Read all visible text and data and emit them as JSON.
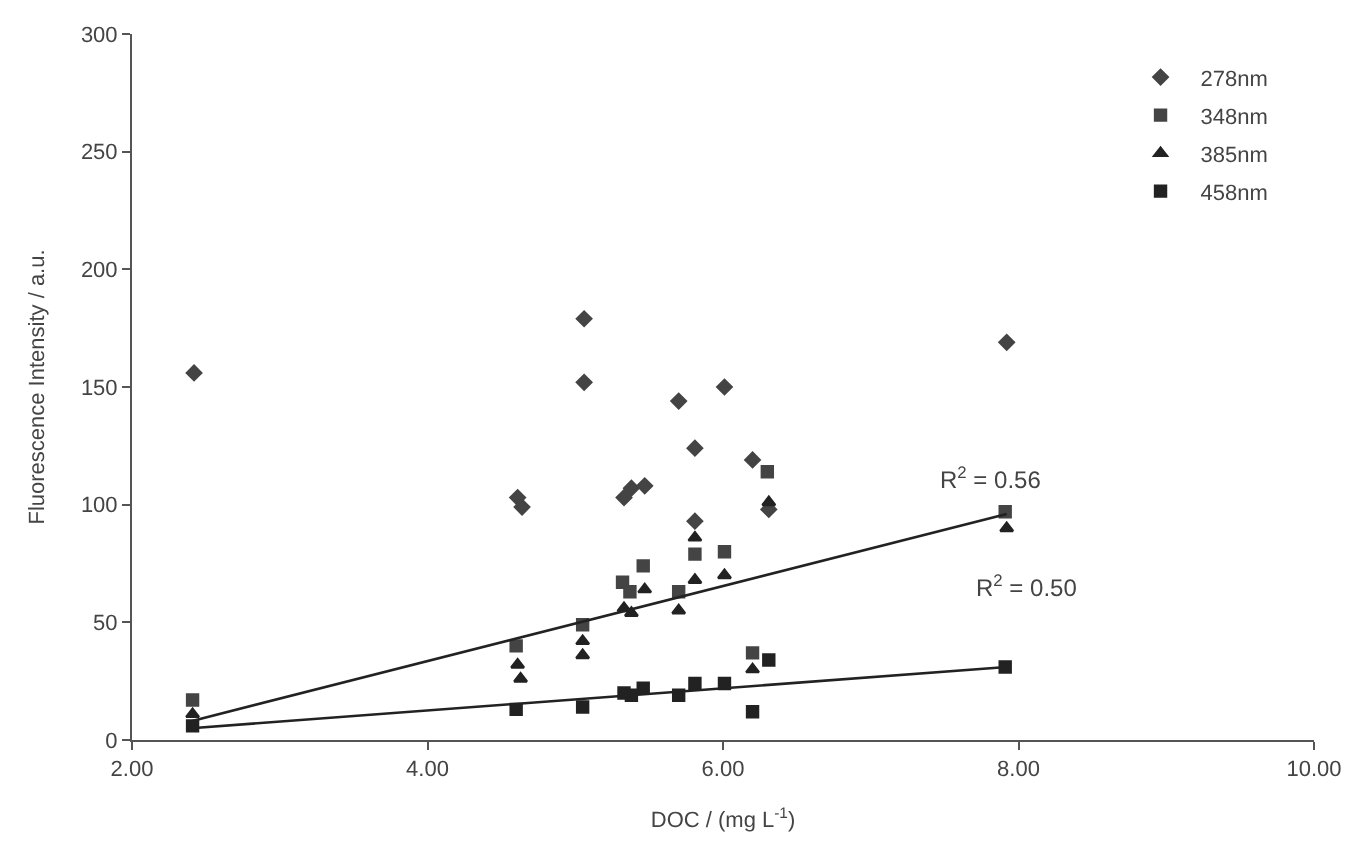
{
  "chart_data": {
    "type": "scatter",
    "xlabel": "DOC / (mg L$^{-1}$)",
    "ylabel": "Fluorescence Intensity / a.u.",
    "xlim": [
      2,
      10
    ],
    "ylim": [
      0,
      300
    ],
    "xticks": [
      {
        "value": 2,
        "label": "2.00"
      },
      {
        "value": 4,
        "label": "4.00"
      },
      {
        "value": 6,
        "label": "6.00"
      },
      {
        "value": 8,
        "label": "8.00"
      },
      {
        "value": 10,
        "label": "10.00"
      }
    ],
    "yticks": [
      0,
      50,
      100,
      150,
      200,
      250,
      300
    ],
    "legend": "top right",
    "series": [
      {
        "name": "278nm",
        "color": "#444444",
        "marker": "diamond",
        "x": [
          2.42,
          4.61,
          4.64,
          5.06,
          5.06,
          5.33,
          5.38,
          5.47,
          5.7,
          5.81,
          5.81,
          6.01,
          6.2,
          6.31,
          7.92
        ],
        "values": [
          156,
          103,
          99,
          179,
          152,
          103,
          107,
          108,
          144,
          124,
          93,
          150,
          119,
          98,
          169
        ]
      },
      {
        "name": "348nm",
        "color": "#444444",
        "marker": "square",
        "x": [
          2.41,
          4.6,
          5.05,
          5.32,
          5.37,
          5.46,
          5.7,
          5.81,
          6.01,
          6.2,
          6.3,
          7.91
        ],
        "values": [
          17,
          40,
          49,
          67,
          63,
          74,
          63,
          79,
          80,
          37,
          114,
          97
        ]
      },
      {
        "name": "385nm",
        "color": "#222222",
        "marker": "triangle",
        "x": [
          2.41,
          4.61,
          4.63,
          5.05,
          5.05,
          5.33,
          5.38,
          5.47,
          5.7,
          5.81,
          5.81,
          6.01,
          6.2,
          6.31,
          7.92
        ],
        "values": [
          11,
          32,
          26,
          42,
          36,
          56,
          54,
          64,
          55,
          86,
          68,
          70,
          30,
          101,
          90
        ]
      },
      {
        "name": "458nm",
        "color": "#222222",
        "marker": "square",
        "x": [
          2.41,
          4.6,
          5.05,
          5.33,
          5.38,
          5.46,
          5.7,
          5.81,
          6.01,
          6.2,
          6.31,
          7.91
        ],
        "values": [
          6,
          13,
          14,
          20,
          19,
          22,
          19,
          24,
          24,
          12,
          34,
          31
        ]
      },
      {
        "type": "line",
        "color": "#222222",
        "x": [
          2.4,
          7.92
        ],
        "values": [
          8,
          96
        ]
      },
      {
        "type": "line",
        "color": "#222222",
        "x": [
          2.4,
          7.92
        ],
        "values": [
          5,
          31
        ]
      }
    ],
    "annotations": [
      "R$^{2}$ = 0.56",
      "R$^{2}$ = 0.50"
    ]
  }
}
